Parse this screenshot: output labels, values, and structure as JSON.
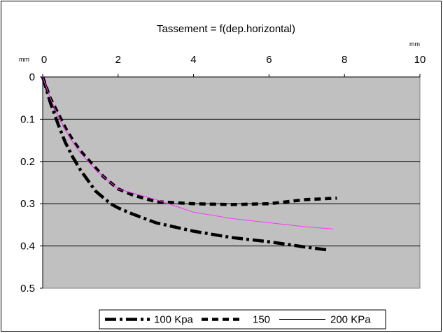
{
  "chart_data": {
    "type": "line",
    "title": "Tassement = f(dep.horizontal)",
    "x_axis": {
      "unit_left": "mm",
      "unit_right": "mm",
      "range": [
        0,
        10
      ],
      "ticks": [
        0,
        2,
        4,
        6,
        8,
        10
      ],
      "tick_labels": [
        "0",
        "2",
        "4",
        "6",
        "8",
        "10"
      ],
      "position": "top"
    },
    "y_axis": {
      "range": [
        0,
        0.5
      ],
      "reversed": true,
      "ticks": [
        0,
        0.1,
        0.2,
        0.3,
        0.4,
        0.5
      ],
      "tick_labels": [
        "0",
        "0.1",
        "0.2",
        "0.3",
        "0.4",
        "0.5"
      ]
    },
    "grid": "horizontal",
    "legend_position": "bottom",
    "plot_background": "#c0c0c0",
    "series": [
      {
        "name": "100 Kpa",
        "color": "#000000",
        "style": "dash-dot",
        "x": [
          0,
          0.2,
          0.4,
          0.6,
          0.8,
          1.0,
          1.2,
          1.4,
          1.6,
          1.8,
          2.0,
          2.4,
          3.0,
          4.0,
          5.0,
          6.0,
          7.0,
          7.6
        ],
        "y": [
          0,
          0.06,
          0.11,
          0.155,
          0.19,
          0.22,
          0.245,
          0.27,
          0.285,
          0.3,
          0.31,
          0.325,
          0.345,
          0.365,
          0.38,
          0.39,
          0.403,
          0.41
        ]
      },
      {
        "name": "150",
        "color": "#000000",
        "style": "dash",
        "x": [
          0,
          0.2,
          0.4,
          0.6,
          0.8,
          1.0,
          1.2,
          1.4,
          1.6,
          1.8,
          2.0,
          2.4,
          3.0,
          4.0,
          5.0,
          6.0,
          7.0,
          7.8
        ],
        "y": [
          0,
          0.05,
          0.085,
          0.12,
          0.15,
          0.175,
          0.195,
          0.215,
          0.235,
          0.25,
          0.265,
          0.28,
          0.295,
          0.3,
          0.302,
          0.3,
          0.29,
          0.287
        ]
      },
      {
        "name": "200 KPa",
        "color": "#ff33ff",
        "style": "solid",
        "x": [
          0,
          0.2,
          0.4,
          0.6,
          0.8,
          1.0,
          1.2,
          1.4,
          1.6,
          1.8,
          2.0,
          2.4,
          3.0,
          4.0,
          5.0,
          6.0,
          7.0,
          7.7
        ],
        "y": [
          0,
          0.05,
          0.09,
          0.125,
          0.155,
          0.18,
          0.2,
          0.22,
          0.235,
          0.25,
          0.265,
          0.275,
          0.29,
          0.32,
          0.335,
          0.345,
          0.355,
          0.36
        ]
      }
    ]
  }
}
